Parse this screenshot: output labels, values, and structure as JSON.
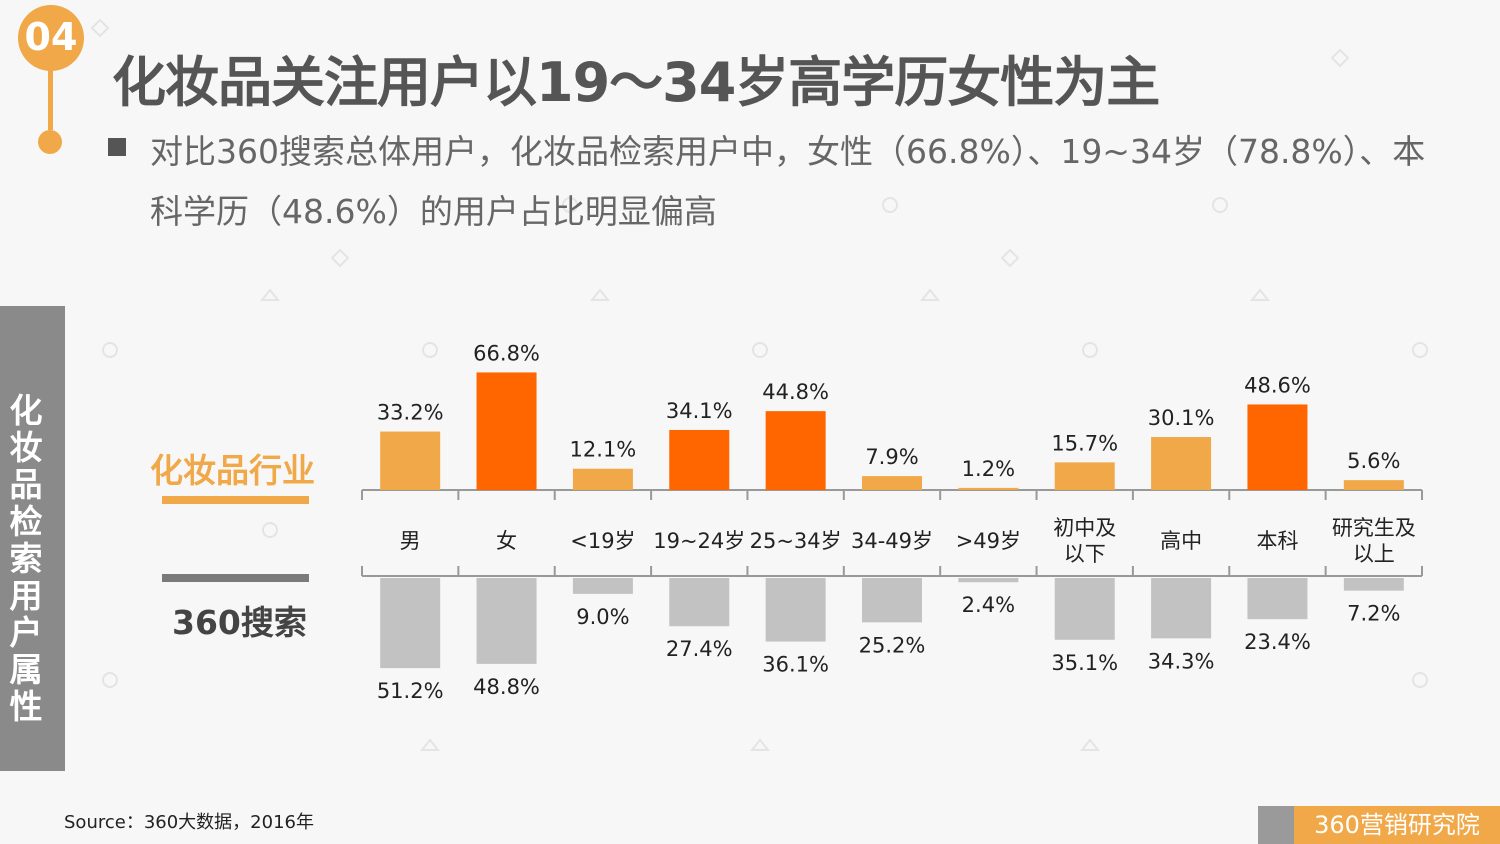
{
  "badge": "04",
  "title": "化妆品关注用户以19～34岁高学历女性为主",
  "subtitle": "对比360搜索总体用户，化妆品检索用户中，女性（66.8%）、19~34岁（78.8%）、本科学历（48.6%）的用户占比明显偏高",
  "side_label": "化妆品检索用户属性",
  "legend": {
    "top": "化妆品行业",
    "bottom": "360搜索"
  },
  "source": "Source：360大数据，2016年",
  "footer_brand": "360营销研究院",
  "colors": {
    "light_orange": "#f0a848",
    "dark_orange": "#ff6600",
    "gray_bar": "#c2c2c2",
    "axis": "#999999"
  },
  "chart_data": {
    "type": "bar",
    "categories": [
      "男",
      "女",
      "<19岁",
      "19~24岁",
      "25~34岁",
      "34-49岁",
      ">49岁",
      "初中及以下",
      "高中",
      "本科",
      "研究生及以上"
    ],
    "category_lines": [
      [
        "男"
      ],
      [
        "女"
      ],
      [
        "<19岁"
      ],
      [
        "19~24岁"
      ],
      [
        "25~34岁"
      ],
      [
        "34-49岁"
      ],
      [
        ">49岁"
      ],
      [
        "初中及",
        "以下"
      ],
      [
        "高中"
      ],
      [
        "本科"
      ],
      [
        "研究生及",
        "以上"
      ]
    ],
    "series": [
      {
        "name": "化妆品行业",
        "values": [
          33.2,
          66.8,
          12.1,
          34.1,
          44.8,
          7.9,
          1.2,
          15.7,
          30.1,
          48.6,
          5.6
        ],
        "labels": [
          "33.2%",
          "66.8%",
          "12.1%",
          "34.1%",
          "44.8%",
          "7.9%",
          "1.2%",
          "15.7%",
          "30.1%",
          "48.6%",
          "5.6%"
        ],
        "highlight": [
          false,
          true,
          false,
          true,
          true,
          false,
          false,
          false,
          false,
          true,
          false
        ]
      },
      {
        "name": "360搜索",
        "values": [
          51.2,
          48.8,
          9.0,
          27.4,
          36.1,
          25.2,
          2.4,
          35.1,
          34.3,
          23.4,
          7.2
        ],
        "labels": [
          "51.2%",
          "48.8%",
          "9.0%",
          "27.4%",
          "36.1%",
          "25.2%",
          "2.4%",
          "35.1%",
          "34.3%",
          "23.4%",
          "7.2%"
        ]
      }
    ],
    "unit": "%",
    "grid": false,
    "layout": "diverging: 化妆品行业 above axis, 360搜索 below axis"
  }
}
